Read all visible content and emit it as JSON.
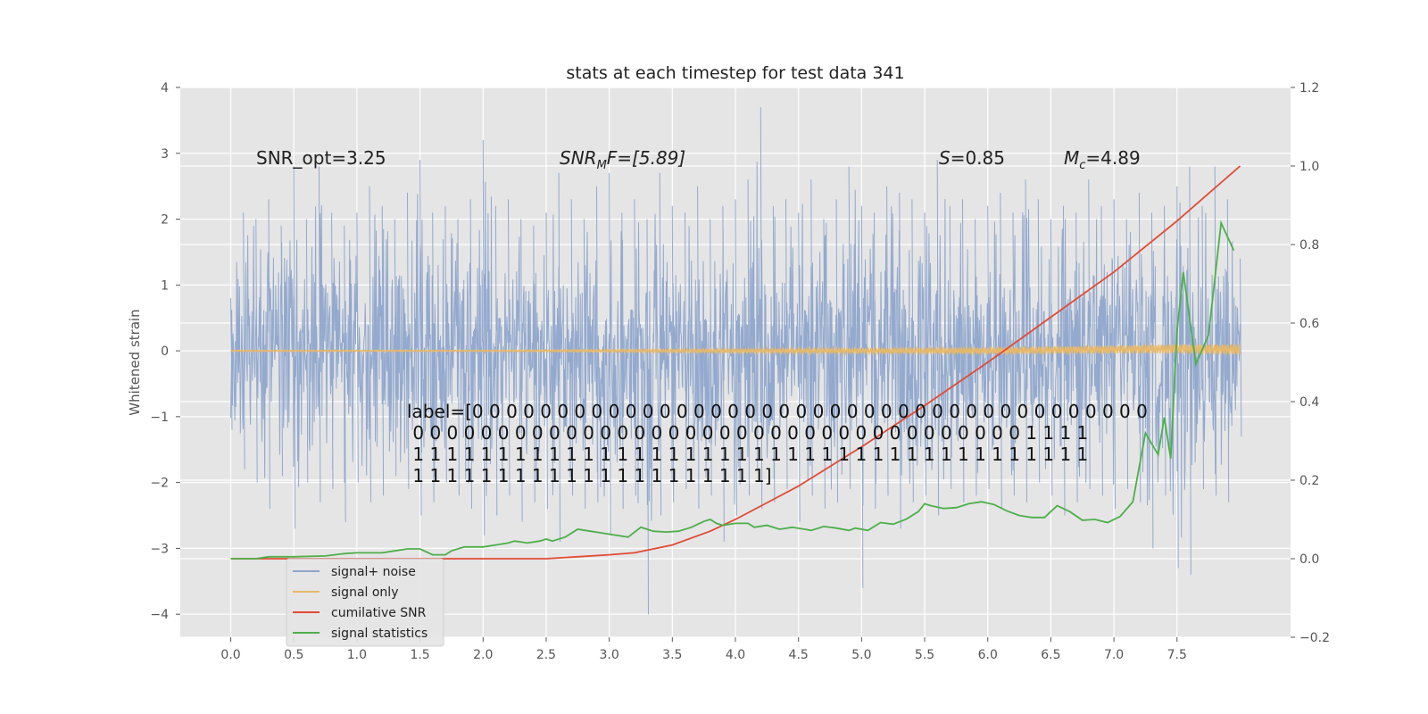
{
  "chart_data": {
    "type": "line",
    "title": "stats at each timestep for test data 341",
    "ylabel": "Whitened strain",
    "xlim": [
      -0.4,
      8.4
    ],
    "ylim": [
      -4.35,
      4.0
    ],
    "y2lim": [
      -0.2,
      1.2
    ],
    "xticks": [
      "0.0",
      "0.5",
      "1.0",
      "1.5",
      "2.0",
      "2.5",
      "3.0",
      "3.5",
      "4.0",
      "4.5",
      "5.0",
      "5.5",
      "6.0",
      "6.5",
      "7.0",
      "7.5"
    ],
    "yticks": [
      "4",
      "3",
      "2",
      "1",
      "0",
      "−1",
      "−2",
      "−3",
      "−4"
    ],
    "y2ticks": [
      "1.2",
      "1.0",
      "0.8",
      "0.6",
      "0.4",
      "0.2",
      "0.0",
      "−0.2"
    ],
    "grid": true,
    "annotations": {
      "snr_opt": "SNR_opt=3.25",
      "snr_mf_main": "SNR",
      "snr_mf_sub": "M",
      "snr_mf_rest": "F=[5.89]",
      "s_main": "S",
      "s_rest": "=0.85",
      "mc_main": "M",
      "mc_sub": "c",
      "mc_rest": "=4.89"
    },
    "label_lines": [
      "label=[0 0 0 0 0 0 0 0 0 0 0 0 0 0 0 0 0 0 0 0 0 0 0 0 0 0 0 0 0 0 0 0 0 0 0 0 0 0 0 0",
      " 0 0 0 0 0 0 0 0 0 0 0 0 0 0 0 0 0 0 0 0 0 0 0 0 0 0 0 0 0 0 0 0 0 0 0 0 1 1 1 1",
      " 1 1 1 1 1 1 1 1 1 1 1 1 1 1 1 1 1 1 1 1 1 1 1 1 1 1 1 1 1 1 1 1 1 1 1 1 1 1 1 1",
      " 1 1 1 1 1 1 1 1 1 1 1 1 1 1 1 1 1 1 1 1 1]"
    ],
    "legend_position": "lower-left",
    "legend": [
      "signal+ noise",
      "signal only",
      "cumilative SNR",
      "signal statistics"
    ],
    "series": [
      {
        "name": "signal+ noise",
        "axis": "left",
        "color": "#8ea5cc",
        "x": [
          0.0,
          0.1,
          0.2,
          0.3,
          0.4,
          0.5,
          0.6,
          0.7,
          0.8,
          0.9,
          1.0,
          1.1,
          1.2,
          1.3,
          1.4,
          1.5,
          1.6,
          1.7,
          1.8,
          1.9,
          2.0,
          2.1,
          2.2,
          2.3,
          2.4,
          2.5,
          2.6,
          2.7,
          2.8,
          2.9,
          3.0,
          3.1,
          3.2,
          3.3,
          3.4,
          3.5,
          3.6,
          3.7,
          3.8,
          3.9,
          4.0,
          4.1,
          4.2,
          4.3,
          4.4,
          4.5,
          4.6,
          4.7,
          4.8,
          4.9,
          5.0,
          5.1,
          5.2,
          5.3,
          5.4,
          5.5,
          5.6,
          5.7,
          5.8,
          5.9,
          6.0,
          6.1,
          6.2,
          6.3,
          6.4,
          6.5,
          6.6,
          6.7,
          6.8,
          6.9,
          7.0,
          7.1,
          7.2,
          7.3,
          7.4,
          7.5,
          7.6,
          7.7,
          7.8,
          7.9,
          8.0
        ],
        "upper": [
          0.8,
          2.1,
          2.0,
          2.3,
          1.9,
          2.8,
          2.0,
          2.8,
          2.1,
          1.9,
          2.1,
          2.5,
          2.2,
          2.0,
          2.4,
          2.9,
          2.1,
          2.2,
          2.0,
          2.3,
          3.2,
          2.2,
          2.3,
          2.0,
          1.9,
          2.1,
          2.7,
          2.3,
          2.0,
          2.5,
          2.7,
          2.1,
          2.3,
          2.0,
          2.7,
          2.2,
          2.1,
          2.5,
          2.0,
          2.2,
          2.3,
          2.6,
          3.7,
          2.2,
          2.3,
          2.1,
          2.6,
          2.0,
          2.3,
          2.8,
          2.2,
          2.1,
          2.5,
          2.4,
          2.3,
          2.1,
          2.9,
          2.2,
          2.3,
          2.0,
          2.2,
          2.4,
          2.1,
          2.6,
          2.3,
          2.0,
          2.2,
          2.1,
          2.6,
          2.2,
          2.3,
          2.0,
          2.4,
          2.1,
          2.2,
          2.5,
          2.8,
          2.2,
          2.8,
          2.3,
          1.4
        ],
        "lower": [
          -1.2,
          -1.8,
          -2.0,
          -2.4,
          -1.9,
          -2.7,
          -2.0,
          -2.3,
          -2.1,
          -2.6,
          -2.0,
          -2.3,
          -2.2,
          -1.9,
          -2.1,
          -2.5,
          -2.3,
          -2.0,
          -2.2,
          -2.4,
          -2.8,
          -2.5,
          -2.2,
          -2.6,
          -2.3,
          -2.4,
          -2.9,
          -2.2,
          -2.4,
          -2.3,
          -2.8,
          -2.4,
          -2.2,
          -4.0,
          -2.5,
          -2.3,
          -2.1,
          -2.4,
          -2.2,
          -2.9,
          -2.5,
          -2.2,
          -2.4,
          -2.3,
          -2.1,
          -2.6,
          -2.2,
          -2.4,
          -2.3,
          -2.1,
          -3.6,
          -2.4,
          -2.2,
          -2.7,
          -2.3,
          -2.2,
          -2.5,
          -2.1,
          -2.3,
          -2.2,
          -2.1,
          -2.4,
          -2.2,
          -2.3,
          -2.0,
          -2.2,
          -2.5,
          -2.3,
          -2.1,
          -2.2,
          -2.4,
          -2.1,
          -2.3,
          -3.0,
          -2.2,
          -3.3,
          -3.4,
          -2.1,
          -2.2,
          -2.3,
          -1.3
        ]
      },
      {
        "name": "signal only",
        "axis": "left",
        "color": "#e8b968",
        "x": [
          0.0,
          1.0,
          2.0,
          3.0,
          4.0,
          5.0,
          6.0,
          7.0,
          7.5,
          8.0
        ],
        "y": [
          0.0,
          0.0,
          0.0,
          0.0,
          0.0,
          0.0,
          0.0,
          0.02,
          0.03,
          0.02
        ],
        "amplitude": [
          0.01,
          0.01,
          0.01,
          0.02,
          0.03,
          0.04,
          0.05,
          0.06,
          0.07,
          0.08
        ]
      },
      {
        "name": "cumilative SNR",
        "axis": "right",
        "color": "#e24a33",
        "x": [
          0.0,
          0.5,
          1.0,
          1.5,
          2.0,
          2.5,
          3.0,
          3.2,
          3.5,
          3.8,
          4.0,
          4.5,
          5.0,
          5.5,
          6.0,
          6.5,
          7.0,
          7.5,
          8.0
        ],
        "y": [
          0.0,
          0.0,
          0.0,
          0.0,
          0.0,
          0.0,
          0.01,
          0.015,
          0.035,
          0.07,
          0.1,
          0.185,
          0.285,
          0.39,
          0.5,
          0.615,
          0.73,
          0.86,
          1.0
        ]
      },
      {
        "name": "signal statistics",
        "axis": "right",
        "color": "#4daf4a",
        "x": [
          0.0,
          0.2,
          0.3,
          0.5,
          0.75,
          0.9,
          1.0,
          1.2,
          1.3,
          1.4,
          1.5,
          1.6,
          1.7,
          1.75,
          1.85,
          2.0,
          2.1,
          2.2,
          2.25,
          2.35,
          2.45,
          2.5,
          2.55,
          2.65,
          2.75,
          2.85,
          2.95,
          3.05,
          3.15,
          3.25,
          3.35,
          3.45,
          3.55,
          3.65,
          3.75,
          3.8,
          3.85,
          3.9,
          4.0,
          4.1,
          4.15,
          4.25,
          4.35,
          4.45,
          4.55,
          4.6,
          4.7,
          4.8,
          4.9,
          4.95,
          5.05,
          5.15,
          5.25,
          5.35,
          5.45,
          5.5,
          5.55,
          5.65,
          5.75,
          5.85,
          5.95,
          6.05,
          6.15,
          6.25,
          6.35,
          6.45,
          6.55,
          6.65,
          6.75,
          6.85,
          6.95,
          7.05,
          7.15,
          7.25,
          7.35,
          7.4,
          7.45,
          7.5,
          7.55,
          7.65,
          7.75,
          7.85,
          7.95
        ],
        "y": [
          0.0,
          0.0,
          0.005,
          0.005,
          0.007,
          0.013,
          0.015,
          0.015,
          0.02,
          0.025,
          0.025,
          0.01,
          0.01,
          0.02,
          0.03,
          0.03,
          0.035,
          0.04,
          0.045,
          0.04,
          0.045,
          0.05,
          0.045,
          0.055,
          0.075,
          0.07,
          0.065,
          0.06,
          0.055,
          0.08,
          0.07,
          0.068,
          0.07,
          0.08,
          0.095,
          0.1,
          0.09,
          0.085,
          0.09,
          0.09,
          0.08,
          0.085,
          0.075,
          0.08,
          0.075,
          0.072,
          0.082,
          0.078,
          0.072,
          0.078,
          0.072,
          0.092,
          0.088,
          0.1,
          0.12,
          0.14,
          0.135,
          0.128,
          0.13,
          0.14,
          0.145,
          0.138,
          0.122,
          0.11,
          0.105,
          0.105,
          0.135,
          0.12,
          0.098,
          0.1,
          0.092,
          0.108,
          0.145,
          0.32,
          0.265,
          0.36,
          0.255,
          0.58,
          0.73,
          0.495,
          0.57,
          0.855,
          0.785
        ]
      }
    ]
  }
}
